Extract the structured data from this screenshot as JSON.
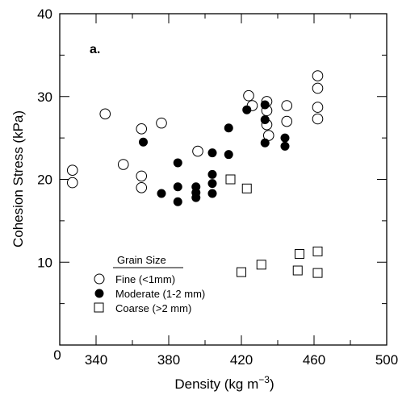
{
  "chart_data": {
    "type": "scatter",
    "panel_label": "a.",
    "xlabel": "Density (kg m",
    "xlabel_exponent": "−3",
    "xlabel_close": ")",
    "ylabel": "Cohesion Stress (kPa)",
    "xlim": [
      320,
      500
    ],
    "ylim": [
      0,
      40
    ],
    "x_origin_label": "0",
    "x_ticks": [
      340,
      380,
      420,
      460,
      500
    ],
    "y_ticks": [
      10,
      20,
      30,
      40
    ],
    "grid": false,
    "legend": {
      "title": "Grain Size",
      "position": "bottom-left"
    },
    "series": [
      {
        "name": "Fine (<1mm)",
        "marker": "open-circle",
        "points": [
          [
            327,
            21.1
          ],
          [
            327,
            19.6
          ],
          [
            345,
            27.9
          ],
          [
            355,
            21.8
          ],
          [
            365,
            26.1
          ],
          [
            365,
            20.4
          ],
          [
            365,
            19.0
          ],
          [
            376,
            26.8
          ],
          [
            396,
            23.4
          ],
          [
            424,
            30.1
          ],
          [
            426,
            28.9
          ],
          [
            434,
            29.4
          ],
          [
            434,
            28.3
          ],
          [
            434,
            26.6
          ],
          [
            435,
            25.3
          ],
          [
            445,
            28.9
          ],
          [
            445,
            27.0
          ],
          [
            462,
            32.5
          ],
          [
            462,
            31.0
          ],
          [
            462,
            28.7
          ],
          [
            462,
            27.3
          ]
        ]
      },
      {
        "name": "Moderate (1-2 mm)",
        "marker": "filled-circle",
        "points": [
          [
            366,
            24.5
          ],
          [
            376,
            18.3
          ],
          [
            385,
            22.0
          ],
          [
            385,
            19.1
          ],
          [
            385,
            17.3
          ],
          [
            395,
            19.1
          ],
          [
            395,
            18.4
          ],
          [
            395,
            17.8
          ],
          [
            404,
            23.2
          ],
          [
            404,
            20.6
          ],
          [
            404,
            19.5
          ],
          [
            404,
            18.3
          ],
          [
            413,
            26.2
          ],
          [
            413,
            23.0
          ],
          [
            423,
            28.4
          ],
          [
            433,
            29.0
          ],
          [
            433,
            27.2
          ],
          [
            433,
            24.4
          ],
          [
            444,
            25.0
          ],
          [
            444,
            24.0
          ]
        ]
      },
      {
        "name": "Coarse (>2 mm)",
        "marker": "open-square",
        "points": [
          [
            414,
            20.0
          ],
          [
            420,
            8.8
          ],
          [
            423,
            18.9
          ],
          [
            431,
            9.7
          ],
          [
            451,
            9.0
          ],
          [
            452,
            11.0
          ],
          [
            462,
            11.3
          ],
          [
            462,
            8.7
          ]
        ]
      }
    ]
  }
}
